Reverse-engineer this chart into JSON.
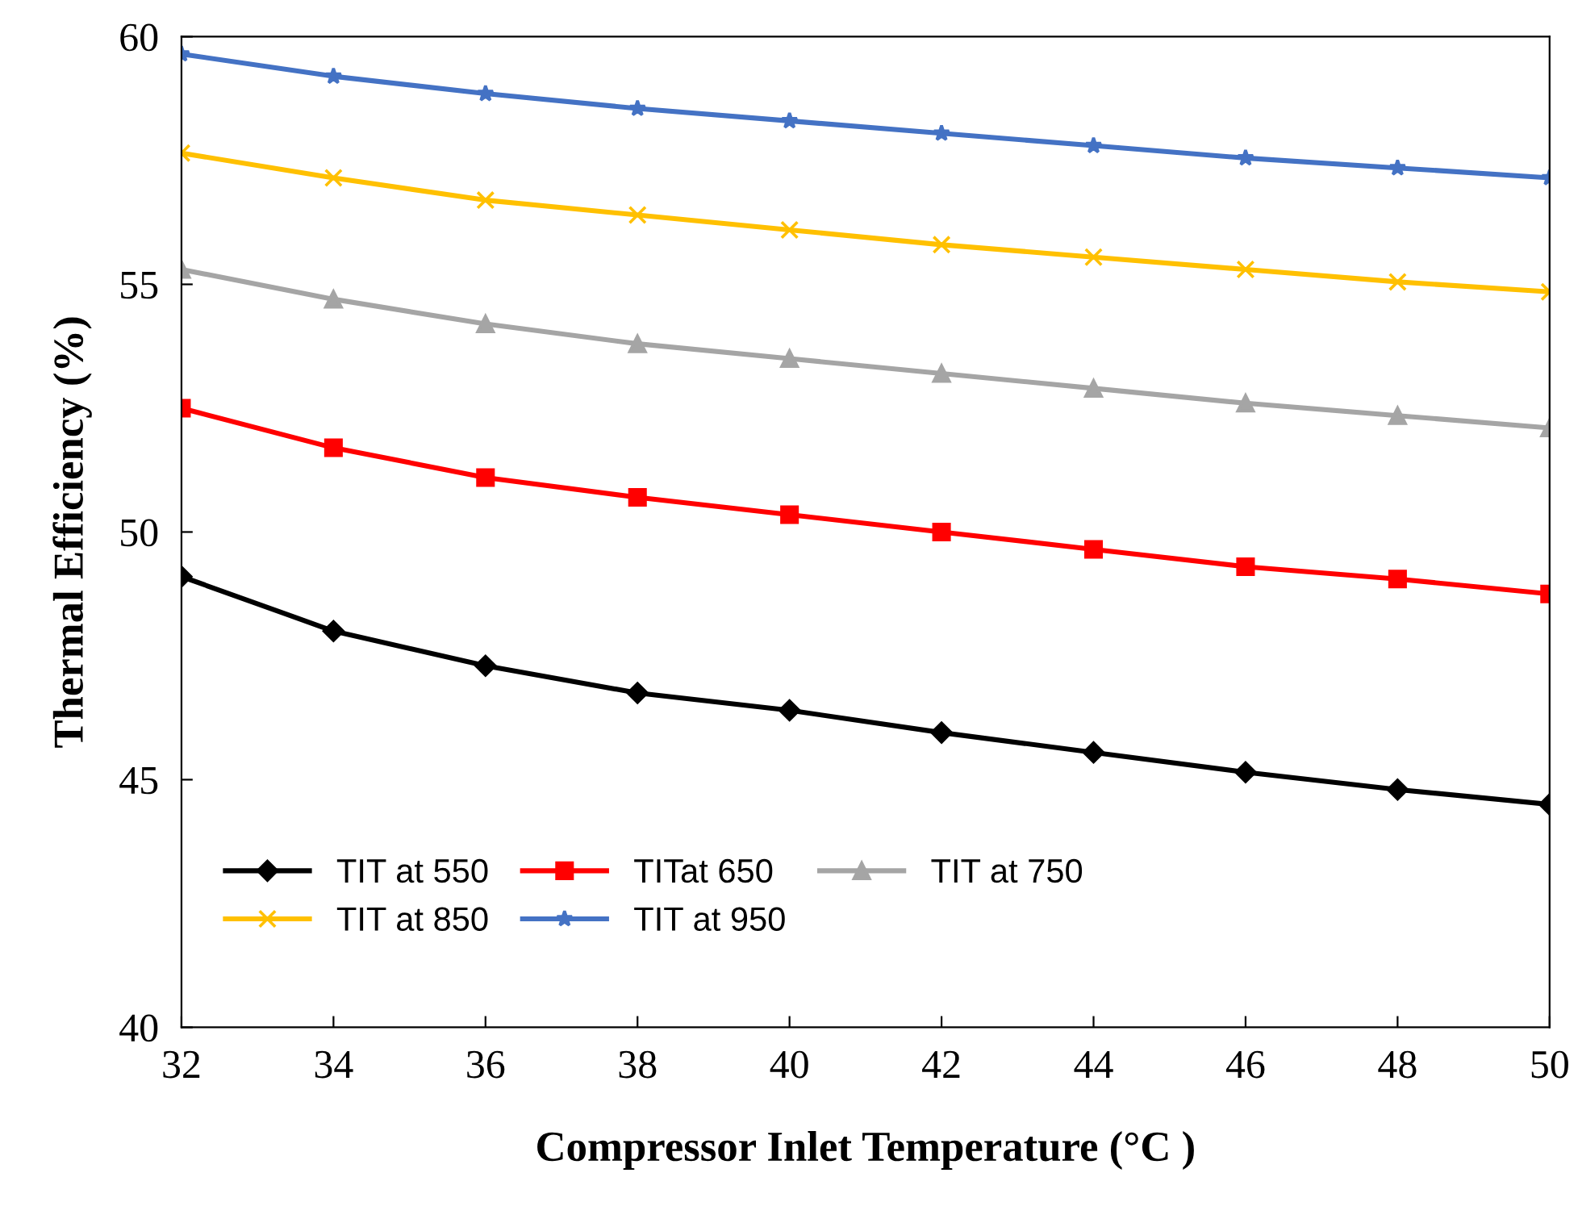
{
  "chart_data": {
    "type": "line",
    "xlabel": "Compressor Inlet Temperature (°C )",
    "ylabel": "Thermal Efficiency (%)",
    "x": [
      32,
      34,
      36,
      38,
      40,
      42,
      44,
      46,
      48,
      50
    ],
    "series": [
      {
        "name": "TIT at 550",
        "color": "#000000",
        "marker": "diamond",
        "values": [
          49.1,
          48.0,
          47.3,
          46.75,
          46.4,
          45.95,
          45.55,
          45.15,
          44.8,
          44.5
        ]
      },
      {
        "name": "TITat 650",
        "color": "#ff0000",
        "marker": "square",
        "values": [
          52.5,
          51.7,
          51.1,
          50.7,
          50.35,
          50.0,
          49.65,
          49.3,
          49.05,
          48.75
        ]
      },
      {
        "name": "TIT at 750",
        "color": "#a5a5a5",
        "marker": "triangle",
        "values": [
          55.3,
          54.7,
          54.2,
          53.8,
          53.5,
          53.2,
          52.9,
          52.6,
          52.35,
          52.1
        ]
      },
      {
        "name": "TIT at 850",
        "color": "#ffc000",
        "marker": "cross",
        "values": [
          57.65,
          57.15,
          56.7,
          56.4,
          56.1,
          55.8,
          55.55,
          55.3,
          55.05,
          54.85
        ]
      },
      {
        "name": "TIT at 950",
        "color": "#4472c4",
        "marker": "star",
        "values": [
          59.65,
          59.2,
          58.85,
          58.55,
          58.3,
          58.05,
          57.8,
          57.55,
          57.35,
          57.15
        ]
      }
    ],
    "xlim": [
      32,
      50
    ],
    "xticks": [
      32,
      34,
      36,
      38,
      40,
      42,
      44,
      46,
      48,
      50
    ],
    "ylim": [
      40,
      60
    ],
    "yticks": [
      40,
      45,
      50,
      55,
      60
    ],
    "grid": false,
    "legend": "bottom left",
    "line_style": "solid"
  }
}
